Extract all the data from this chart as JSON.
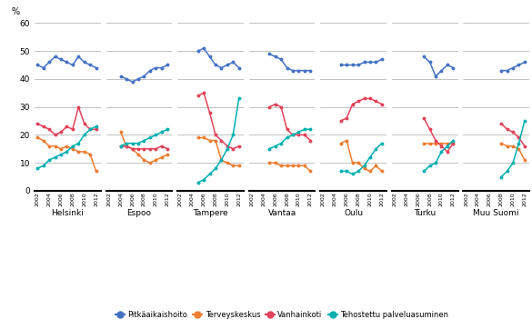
{
  "years": [
    2002,
    2003,
    2004,
    2005,
    2006,
    2007,
    2008,
    2009,
    2010,
    2011,
    2012
  ],
  "cities": [
    "Helsinki",
    "Espoo",
    "Tampere",
    "Vantaa",
    "Oulu",
    "Turku",
    "Muu Suomi"
  ],
  "colors": {
    "pitka": "#4472C4",
    "terveys": "#ED7D31",
    "vanha": "#E2425A",
    "tehostettu": "#00B0B0"
  },
  "ylim": [
    0,
    60
  ],
  "yticks": [
    0,
    10,
    20,
    30,
    40,
    50,
    60
  ],
  "ylabel": "%",
  "data": {
    "Helsinki": {
      "pitka": [
        45,
        44,
        46,
        48,
        47,
        46,
        45,
        48,
        46,
        45,
        44
      ],
      "terveys": [
        19,
        18,
        16,
        16,
        15,
        16,
        15,
        14,
        14,
        13,
        7
      ],
      "vanha": [
        24,
        23,
        22,
        20,
        21,
        23,
        22,
        30,
        24,
        22,
        22
      ],
      "tehostettu": [
        8,
        9,
        11,
        12,
        13,
        14,
        16,
        17,
        20,
        22,
        23
      ]
    },
    "Espoo": {
      "pitka": [
        null,
        null,
        41,
        40,
        39,
        40,
        41,
        43,
        44,
        44,
        45
      ],
      "terveys": [
        null,
        null,
        21,
        16,
        15,
        13,
        11,
        10,
        11,
        12,
        13
      ],
      "vanha": [
        null,
        null,
        16,
        16,
        15,
        15,
        15,
        15,
        15,
        16,
        15
      ],
      "tehostettu": [
        null,
        null,
        16,
        17,
        17,
        17,
        18,
        19,
        20,
        21,
        22
      ]
    },
    "Tampere": {
      "pitka": [
        null,
        null,
        null,
        50,
        51,
        48,
        45,
        44,
        45,
        46,
        44
      ],
      "terveys": [
        null,
        null,
        null,
        19,
        19,
        18,
        18,
        11,
        10,
        9,
        9
      ],
      "vanha": [
        null,
        null,
        null,
        34,
        35,
        28,
        20,
        18,
        16,
        15,
        16
      ],
      "tehostettu": [
        null,
        null,
        null,
        3,
        4,
        6,
        8,
        11,
        15,
        20,
        33
      ]
    },
    "Vantaa": {
      "pitka": [
        null,
        null,
        null,
        49,
        48,
        47,
        44,
        43,
        43,
        43,
        43
      ],
      "terveys": [
        null,
        null,
        null,
        10,
        10,
        9,
        9,
        9,
        9,
        9,
        7
      ],
      "vanha": [
        null,
        null,
        null,
        30,
        31,
        30,
        22,
        20,
        20,
        20,
        18
      ],
      "tehostettu": [
        null,
        null,
        null,
        15,
        16,
        17,
        19,
        20,
        21,
        22,
        22
      ]
    },
    "Oulu": {
      "pitka": [
        null,
        null,
        null,
        45,
        45,
        45,
        45,
        46,
        46,
        46,
        47
      ],
      "terveys": [
        null,
        null,
        null,
        17,
        18,
        10,
        10,
        8,
        7,
        9,
        7
      ],
      "vanha": [
        null,
        null,
        null,
        25,
        26,
        31,
        32,
        33,
        33,
        32,
        31
      ],
      "tehostettu": [
        null,
        null,
        null,
        7,
        7,
        6,
        7,
        9,
        12,
        15,
        17
      ]
    },
    "Turku": {
      "pitka": [
        null,
        null,
        null,
        null,
        null,
        48,
        46,
        41,
        43,
        45,
        44
      ],
      "terveys": [
        null,
        null,
        null,
        null,
        null,
        17,
        17,
        17,
        17,
        17,
        17
      ],
      "vanha": [
        null,
        null,
        null,
        null,
        null,
        26,
        22,
        18,
        16,
        14,
        17
      ],
      "tehostettu": [
        null,
        null,
        null,
        null,
        null,
        7,
        9,
        10,
        14,
        16,
        18
      ]
    },
    "Muu Suomi": {
      "pitka": [
        null,
        null,
        null,
        null,
        null,
        null,
        43,
        43,
        44,
        45,
        46
      ],
      "terveys": [
        null,
        null,
        null,
        null,
        null,
        null,
        17,
        16,
        16,
        15,
        11
      ],
      "vanha": [
        null,
        null,
        null,
        null,
        null,
        null,
        24,
        22,
        21,
        19,
        16
      ],
      "tehostettu": [
        null,
        null,
        null,
        null,
        null,
        null,
        5,
        7,
        10,
        17,
        25
      ]
    }
  },
  "legend_labels": [
    "Pitkäaikaishoito",
    "Terveyskeskus",
    "Vanhainkoti",
    "Tehostettu palveluasuminen"
  ],
  "legend_colors": [
    "#4472C4",
    "#ED7D31",
    "#E2425A",
    "#00B0B0"
  ]
}
